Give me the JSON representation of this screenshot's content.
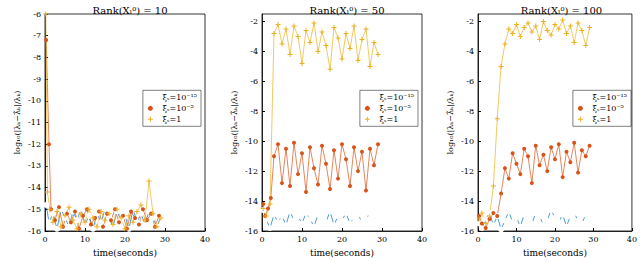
{
  "chart_data": [
    {
      "type": "line",
      "title": "Rank(Xₗ⁰) = 10",
      "x_label": "time(seconds)",
      "y_label": "log₁₀(|λₖ−λ̃ₖ|/λₖ)",
      "xlim": [
        0,
        40
      ],
      "xticks": [
        0,
        10,
        20,
        30,
        40
      ],
      "ylim": [
        -16,
        -6
      ],
      "yticks": [
        -16,
        -15,
        -14,
        -13,
        -12,
        -11,
        -10,
        -9,
        -8,
        -7,
        -6
      ],
      "grid": false,
      "legend": "right",
      "series": [
        {
          "name": "ξₛ=10⁻¹⁵",
          "color": "#0072BD",
          "marker": "circle",
          "x": [
            0.3,
            1,
            2,
            3,
            4,
            5,
            6,
            7,
            8,
            9,
            10,
            11,
            12,
            13,
            14,
            15,
            16,
            17,
            18,
            19,
            20,
            21,
            22,
            23,
            24,
            25,
            26,
            27,
            28,
            29
          ],
          "values": [
            -14.8,
            -15.6,
            -15.2,
            -15.9,
            -15.0,
            -15.4,
            -15.8,
            -15.1,
            -15.5,
            -15.0,
            -15.7,
            -15.3,
            -15.9,
            -15.2,
            -15.6,
            -15.0,
            -15.4,
            -15.8,
            -15.1,
            -15.5,
            -15.3,
            -15.9,
            -15.0,
            -15.6,
            -15.2,
            -15.7,
            -15.1,
            -15.4,
            -15.8,
            -15.3
          ]
        },
        {
          "name": "ξₛ=10⁻⁵",
          "color": "#D95319",
          "marker": "dot",
          "x": [
            0.3,
            1,
            1.5,
            2.5,
            3.5,
            4.5,
            5.5,
            6.5,
            7.5,
            8.5,
            9.5,
            10.5,
            11.5,
            12.5,
            13.5,
            14.5,
            15.5,
            16.5,
            17.5,
            18.5,
            19.5,
            20.5,
            21.5,
            22.5,
            23.5,
            24.5,
            25.5,
            26.5,
            27.5,
            28.5
          ],
          "values": [
            -7.2,
            -12.0,
            -15.0,
            -15.5,
            -14.9,
            -15.8,
            -15.2,
            -15.6,
            -15.1,
            -15.9,
            -15.3,
            -15.0,
            -15.7,
            -15.4,
            -15.1,
            -15.8,
            -15.2,
            -15.5,
            -15.0,
            -15.6,
            -15.3,
            -15.9,
            -15.1,
            -15.4,
            -15.7,
            -15.0,
            -15.5,
            -15.2,
            -15.8,
            -15.3
          ]
        },
        {
          "name": "ξₛ=1",
          "color": "#EDB120",
          "marker": "plus",
          "x": [
            0.2,
            0.6,
            1.2,
            2,
            3,
            4,
            5,
            6,
            7,
            8,
            9,
            10,
            11,
            12,
            13,
            14,
            15,
            16,
            17,
            18,
            19,
            20,
            21,
            22,
            23,
            24,
            25,
            26,
            27,
            28,
            29
          ],
          "values": [
            -6.0,
            -14.2,
            -15.0,
            -15.6,
            -15.1,
            -15.8,
            -15.3,
            -14.9,
            -15.5,
            -15.9,
            -15.2,
            -15.6,
            -15.0,
            -15.4,
            -15.8,
            -15.1,
            -15.5,
            -15.2,
            -15.7,
            -15.0,
            -15.4,
            -15.9,
            -15.3,
            -15.6,
            -15.1,
            -14.8,
            -15.5,
            -13.7,
            -15.2,
            -15.8,
            -15.4
          ]
        }
      ]
    },
    {
      "type": "line",
      "title": "Rank(Xₗ⁰) = 50",
      "x_label": "time(seconds)",
      "y_label": "log₁₀(|λₖ−λ̃ₖ|/λₖ)",
      "xlim": [
        0,
        40
      ],
      "xticks": [
        0,
        10,
        20,
        30,
        40
      ],
      "ylim": [
        -16,
        -1.5
      ],
      "yticks": [
        -16,
        -14,
        -12,
        -10,
        -8,
        -6,
        -4,
        -2
      ],
      "grid": false,
      "legend": "right",
      "series": [
        {
          "name": "ξₛ=10⁻¹⁵",
          "color": "#0072BD",
          "marker": "circle",
          "x": [
            0.3,
            1,
            2,
            3,
            4,
            5,
            6,
            7,
            8,
            9,
            10,
            11,
            12,
            13,
            14,
            15,
            16,
            17,
            18,
            19,
            20,
            21,
            22,
            23,
            24,
            25,
            26,
            27,
            28,
            29
          ],
          "values": [
            -14.6,
            -15.2,
            -15.8,
            -14.9,
            -15.4,
            -15.0,
            -15.6,
            -14.7,
            -15.3,
            -15.0,
            -15.5,
            -14.8,
            -15.2,
            -15.7,
            -14.9,
            -15.1,
            -15.4,
            -14.7,
            -15.6,
            -15.0,
            -15.3,
            -14.8,
            -15.5,
            -15.1,
            -14.9,
            -15.4,
            -15.2,
            -14.8,
            -15.0,
            -15.3
          ]
        },
        {
          "name": "ξₛ=10⁻⁵",
          "color": "#D95319",
          "marker": "dot",
          "x": [
            0.3,
            0.8,
            1.5,
            2.2,
            3,
            4,
            5,
            6,
            7,
            8,
            9,
            10,
            11,
            12,
            13,
            14,
            15,
            16,
            17,
            18,
            19,
            20,
            21,
            22,
            23,
            24,
            25,
            26,
            27,
            28,
            29
          ],
          "values": [
            -14.2,
            -15.0,
            -14.5,
            -13.8,
            -11.0,
            -10.2,
            -12.8,
            -10.5,
            -13.0,
            -10.1,
            -12.2,
            -10.8,
            -13.4,
            -10.4,
            -11.8,
            -12.9,
            -10.3,
            -11.5,
            -13.2,
            -10.6,
            -12.5,
            -10.2,
            -11.2,
            -13.0,
            -10.4,
            -12.0,
            -10.7,
            -13.3,
            -10.5,
            -11.6,
            -10.2
          ]
        },
        {
          "name": "ξₛ=1",
          "color": "#EDB120",
          "marker": "plus",
          "x": [
            0.3,
            1,
            2,
            3,
            4,
            5,
            6,
            7,
            8,
            9,
            10,
            11,
            12,
            13,
            14,
            15,
            16,
            17,
            18,
            19,
            20,
            21,
            22,
            23,
            24,
            25,
            26,
            27,
            28,
            29
          ],
          "values": [
            -14.5,
            -15.0,
            -14.2,
            -2.8,
            -2.2,
            -3.5,
            -2.5,
            -4.2,
            -2.3,
            -3.0,
            -4.8,
            -2.6,
            -3.4,
            -2.1,
            -4.0,
            -2.7,
            -3.6,
            -5.2,
            -2.4,
            -3.1,
            -4.5,
            -2.8,
            -3.8,
            -2.3,
            -4.6,
            -3.2,
            -2.5,
            -5.0,
            -3.4,
            -4.2
          ]
        }
      ]
    },
    {
      "type": "line",
      "title": "Rank(Xₗ⁰) = 100",
      "x_label": "time(seconds)",
      "y_label": "log₁₀(|λₖ−λ̃ₖ|/λₖ)",
      "xlim": [
        0,
        40
      ],
      "xticks": [
        0,
        10,
        20,
        30,
        40
      ],
      "ylim": [
        -16,
        -1.5
      ],
      "yticks": [
        -16,
        -14,
        -12,
        -10,
        -8,
        -6,
        -4,
        -2
      ],
      "grid": false,
      "legend": "right",
      "series": [
        {
          "name": "ξₛ=10⁻¹⁵",
          "color": "#0072BD",
          "marker": "circle",
          "x": [
            0.3,
            1,
            2,
            3,
            4,
            5,
            6,
            7,
            8,
            9,
            10,
            11,
            12,
            13,
            14,
            15,
            16,
            17,
            18,
            19,
            20,
            21,
            22,
            23,
            24,
            25,
            26,
            27,
            28,
            29
          ],
          "values": [
            -15.5,
            -15.8,
            -15.2,
            -14.8,
            -15.6,
            -15.0,
            -15.9,
            -15.3,
            -14.7,
            -15.4,
            -15.1,
            -15.7,
            -14.9,
            -15.2,
            -15.5,
            -14.8,
            -15.0,
            -15.6,
            -15.3,
            -14.6,
            -15.1,
            -15.4,
            -14.9,
            -15.7,
            -15.0,
            -14.8,
            -15.3,
            -15.5,
            -14.9,
            -15.2
          ]
        },
        {
          "name": "ξₛ=10⁻⁵",
          "color": "#D95319",
          "marker": "dot",
          "x": [
            0.3,
            1,
            2,
            3,
            4,
            5,
            6,
            7,
            8,
            9,
            10,
            11,
            12,
            13,
            14,
            15,
            16,
            17,
            18,
            19,
            20,
            21,
            22,
            23,
            24,
            25,
            26,
            27,
            28,
            29
          ],
          "values": [
            -15.0,
            -15.5,
            -15.8,
            -15.2,
            -14.8,
            -15.0,
            -13.5,
            -11.8,
            -12.5,
            -10.8,
            -11.5,
            -12.2,
            -10.5,
            -11.0,
            -12.8,
            -10.3,
            -11.6,
            -10.9,
            -12.0,
            -10.4,
            -11.2,
            -10.2,
            -12.4,
            -10.7,
            -11.4,
            -10.1,
            -12.1,
            -10.6,
            -11.0,
            -10.3
          ]
        },
        {
          "name": "ξₛ=1",
          "color": "#EDB120",
          "marker": "plus",
          "x": [
            0.3,
            1,
            2,
            3,
            4,
            5,
            6,
            7,
            8,
            9,
            10,
            11,
            12,
            13,
            14,
            15,
            16,
            17,
            18,
            19,
            20,
            21,
            22,
            23,
            24,
            25,
            26,
            27,
            28,
            29
          ],
          "values": [
            -15.2,
            -14.8,
            -15.5,
            -15.0,
            -13.0,
            -8.5,
            -5.0,
            -3.5,
            -2.5,
            -2.8,
            -2.2,
            -3.0,
            -2.4,
            -2.1,
            -2.7,
            -2.3,
            -3.2,
            -2.0,
            -2.6,
            -2.9,
            -2.2,
            -2.5,
            -1.9,
            -2.8,
            -2.3,
            -3.4,
            -2.1,
            -2.6,
            -3.6,
            -2.4
          ]
        }
      ]
    }
  ]
}
